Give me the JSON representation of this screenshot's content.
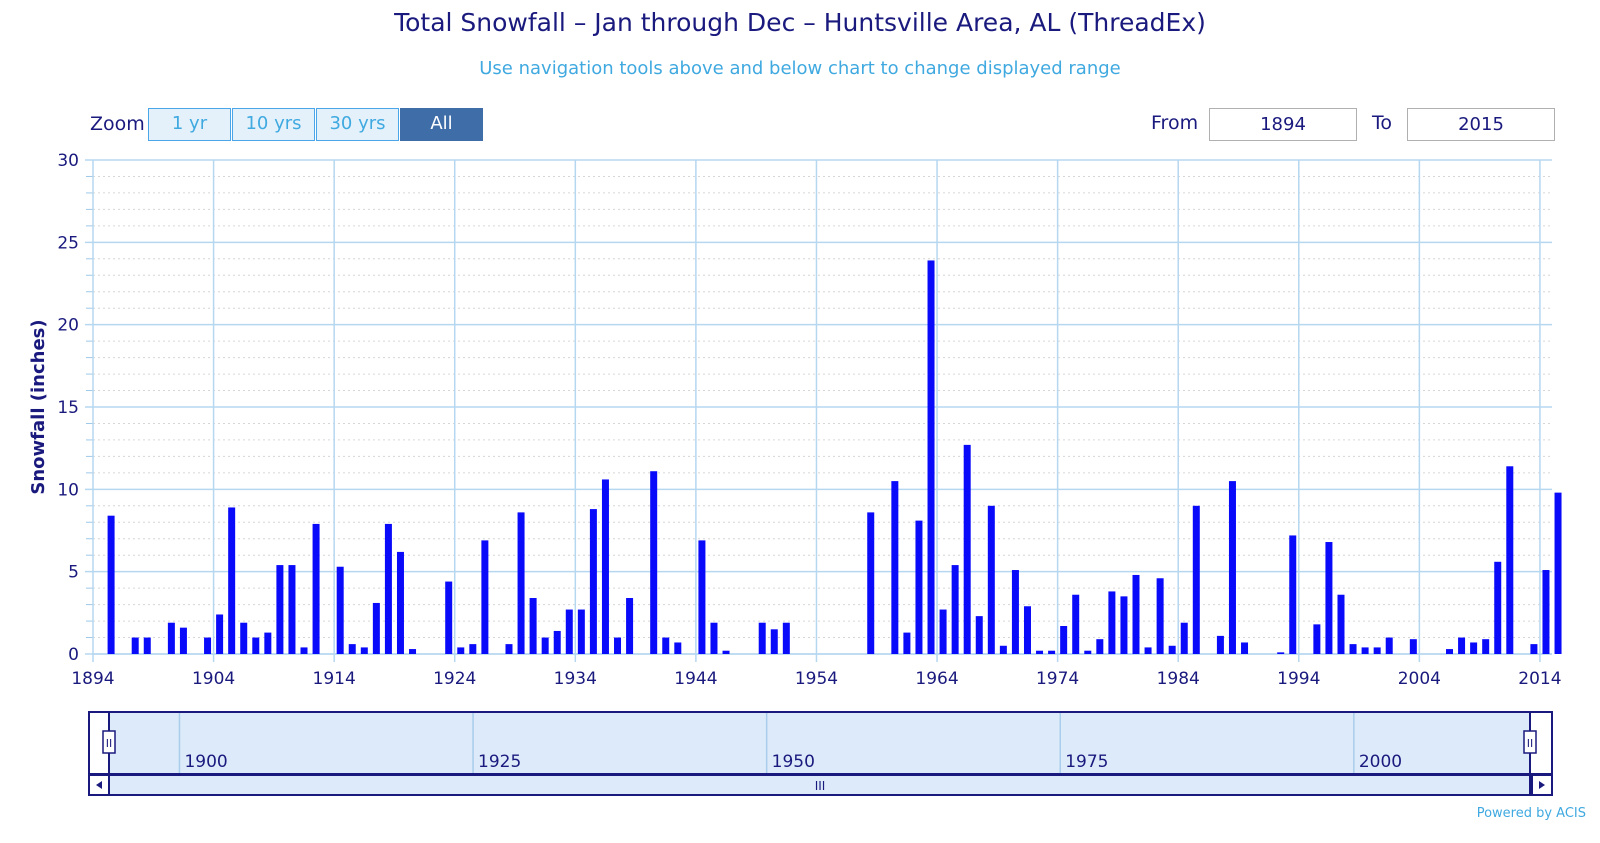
{
  "header": {
    "title": "Total Snowfall – Jan through Dec – Huntsville Area, AL (ThreadEx)",
    "subtitle": "Use navigation tools above and below chart to change displayed range"
  },
  "zoom": {
    "label": "Zoom",
    "buttons": [
      "1 yr",
      "10 yrs",
      "30 yrs",
      "All"
    ],
    "active": "All"
  },
  "range": {
    "from_label": "From",
    "from_value": "1894",
    "to_label": "To",
    "to_value": "2015"
  },
  "navigator": {
    "tick_labels": [
      "1900",
      "1925",
      "1950",
      "1975",
      "2000"
    ],
    "scroll_grip": "III",
    "handle_grip": "II"
  },
  "footer": {
    "credit": "Powered by ACIS"
  },
  "colors": {
    "bar": "#0a0afa",
    "grid": "#b6d7f0",
    "axis_text": "#1a1a7e",
    "navigator_fill": "#dceafa"
  },
  "chart_data": {
    "type": "bar",
    "title": "Total Snowfall – Jan through Dec – Huntsville Area, AL (ThreadEx)",
    "ylabel": "Snowfall (inches)",
    "xlabel": "",
    "ylim": [
      0,
      30
    ],
    "xlim": [
      1894,
      2015
    ],
    "y_ticks": [
      0,
      5,
      10,
      15,
      20,
      25,
      30
    ],
    "x_ticks": [
      1894,
      1904,
      1914,
      1924,
      1934,
      1944,
      1954,
      1964,
      1974,
      1984,
      1994,
      2004,
      2014
    ],
    "grid": true,
    "years": [
      1895,
      1897,
      1898,
      1900,
      1901,
      1903,
      1904,
      1905,
      1906,
      1907,
      1908,
      1909,
      1910,
      1911,
      1912,
      1914,
      1915,
      1916,
      1917,
      1918,
      1919,
      1920,
      1923,
      1924,
      1925,
      1926,
      1928,
      1929,
      1930,
      1931,
      1932,
      1933,
      1934,
      1935,
      1936,
      1937,
      1938,
      1940,
      1941,
      1942,
      1944,
      1945,
      1946,
      1949,
      1950,
      1951,
      1958,
      1960,
      1961,
      1962,
      1963,
      1964,
      1965,
      1966,
      1967,
      1968,
      1969,
      1970,
      1971,
      1972,
      1973,
      1974,
      1975,
      1976,
      1977,
      1978,
      1979,
      1980,
      1981,
      1982,
      1983,
      1984,
      1985,
      1987,
      1988,
      1989,
      1992,
      1993,
      1995,
      1996,
      1997,
      1998,
      1999,
      2000,
      2001,
      2003,
      2006,
      2007,
      2008,
      2009,
      2010,
      2011,
      2013,
      2014,
      2015
    ],
    "values": [
      8.4,
      1.0,
      1.0,
      1.9,
      1.6,
      1.0,
      2.4,
      8.9,
      1.9,
      1.0,
      1.3,
      5.4,
      5.4,
      0.4,
      7.9,
      5.3,
      0.6,
      0.4,
      3.1,
      7.9,
      6.2,
      0.3,
      4.4,
      0.4,
      0.6,
      6.9,
      0.6,
      8.6,
      3.4,
      1.0,
      1.4,
      2.7,
      2.7,
      8.8,
      10.6,
      1.0,
      3.4,
      11.1,
      1.0,
      0.7,
      6.9,
      1.9,
      0.2,
      1.9,
      1.5,
      1.9,
      8.6,
      10.5,
      1.3,
      8.1,
      23.9,
      2.7,
      5.4,
      12.7,
      2.3,
      9.0,
      0.5,
      5.1,
      2.9,
      0.2,
      0.2,
      1.7,
      3.6,
      0.2,
      0.9,
      3.8,
      3.5,
      4.8,
      0.4,
      4.6,
      0.5,
      1.9,
      9.0,
      1.1,
      10.5,
      0.7,
      0.1,
      7.2,
      1.8,
      6.8,
      3.6,
      0.6,
      0.4,
      0.4,
      1.0,
      0.9,
      0.3,
      1.0,
      0.7,
      0.9,
      5.6,
      11.4,
      0.6,
      5.1,
      9.8
    ]
  }
}
